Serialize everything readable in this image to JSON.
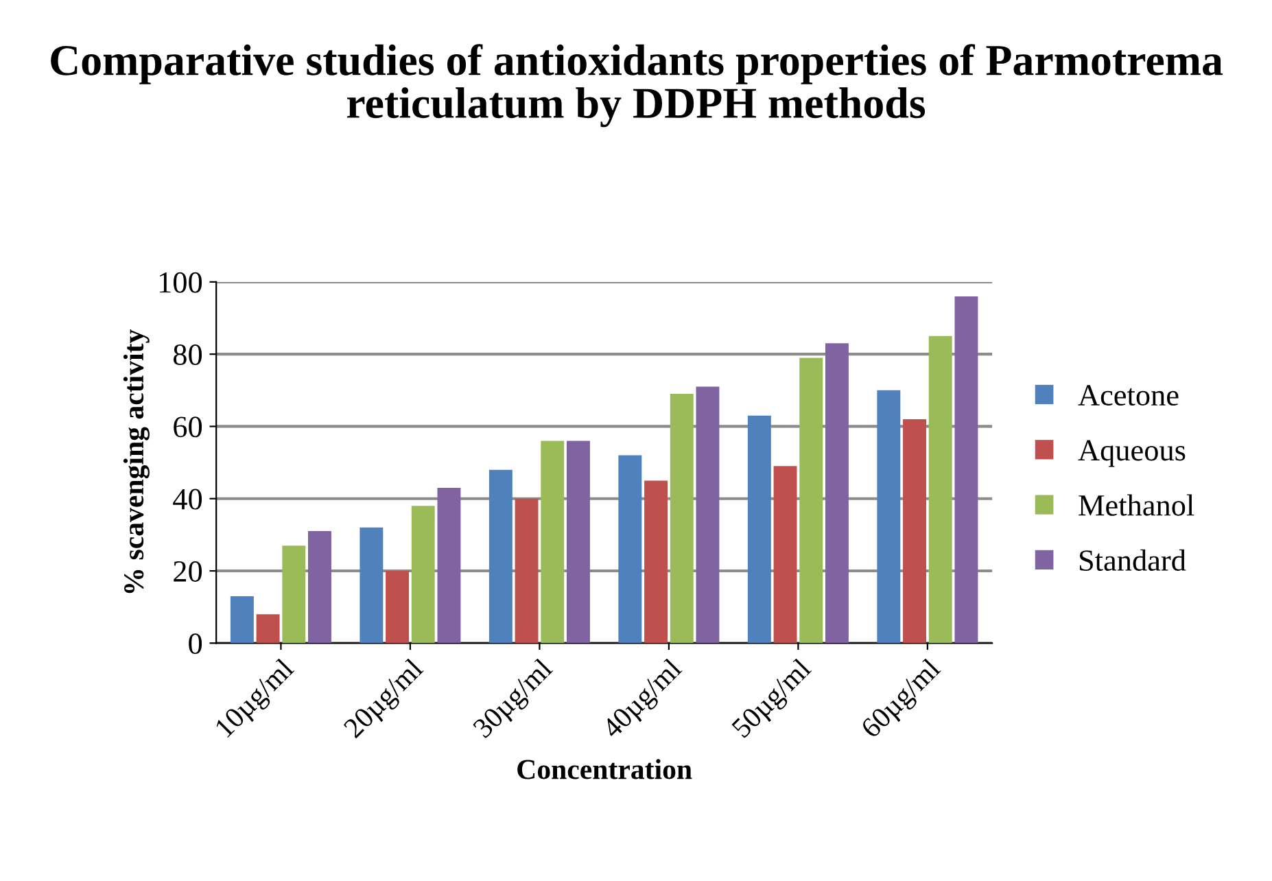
{
  "chart_data": {
    "type": "bar",
    "title": "Comparative studies of antioxidants properties of Parmotrema reticulatum by DDPH methods",
    "xlabel": "Concentration",
    "ylabel": "% scavenging activity",
    "categories": [
      "10µg/ml",
      "20µg/ml",
      "30µg/ml",
      "40µg/ml",
      "50µg/ml",
      "60µg/ml"
    ],
    "series": [
      {
        "name": "Acetone",
        "color": "#4f81bd",
        "values": [
          13,
          32,
          48,
          52,
          63,
          70
        ]
      },
      {
        "name": "Aqueous",
        "color": "#c0504d",
        "values": [
          8,
          20,
          40,
          45,
          49,
          62
        ]
      },
      {
        "name": "Methanol",
        "color": "#9bbb59",
        "values": [
          27,
          38,
          56,
          69,
          79,
          85
        ]
      },
      {
        "name": "Standard",
        "color": "#8064a2",
        "values": [
          31,
          43,
          56,
          71,
          83,
          96
        ]
      }
    ],
    "ylim": [
      0,
      100
    ],
    "yticks": [
      0,
      20,
      40,
      60,
      80,
      100
    ],
    "grid": "y",
    "legend": "right"
  }
}
